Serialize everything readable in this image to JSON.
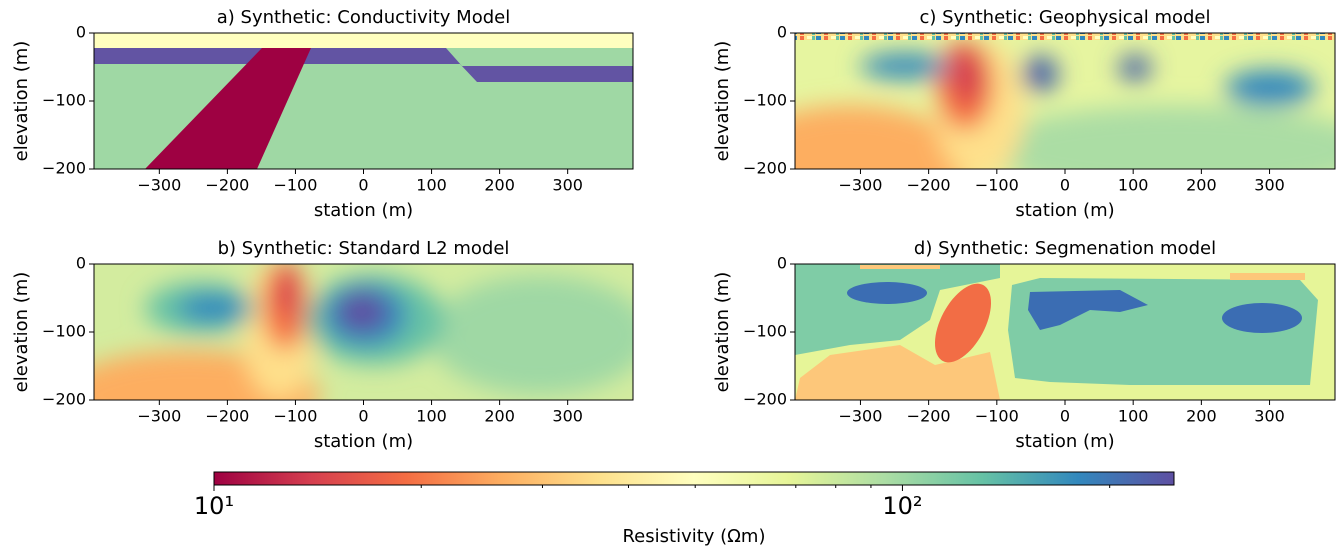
{
  "chart_data": [
    {
      "type": "heatmap",
      "title": "a) Synthetic: Conductivity Model",
      "xlabel": "station (m)",
      "ylabel": "elevation (m)",
      "xlim": [
        -396,
        396
      ],
      "ylim": [
        -200,
        0
      ],
      "xticks": [
        {
          "value": -300,
          "label": "−300"
        },
        {
          "value": -200,
          "label": "−200"
        },
        {
          "value": -100,
          "label": "−100"
        },
        0,
        100,
        200,
        300
      ],
      "yticks": [
        {
          "value": -200,
          "label": "−200"
        },
        {
          "value": -100,
          "label": "−100"
        },
        0
      ]
    },
    {
      "type": "heatmap",
      "title": "c) Synthetic: Geophysical model",
      "xlabel": "station (m)",
      "ylabel": "elevation (m)",
      "xlim": [
        -396,
        396
      ],
      "ylim": [
        -200,
        0
      ],
      "xticks": [
        {
          "value": -300,
          "label": "−300"
        },
        {
          "value": -200,
          "label": "−200"
        },
        {
          "value": -100,
          "label": "−100"
        },
        0,
        100,
        200,
        300
      ],
      "yticks": [
        {
          "value": -200,
          "label": "−200"
        },
        {
          "value": -100,
          "label": "−100"
        },
        0
      ]
    },
    {
      "type": "heatmap",
      "title": "b) Synthetic: Standard L2 model",
      "xlabel": "station (m)",
      "ylabel": "elevation (m)",
      "xlim": [
        -396,
        396
      ],
      "ylim": [
        -200,
        0
      ],
      "xticks": [
        {
          "value": -300,
          "label": "−300"
        },
        {
          "value": -200,
          "label": "−200"
        },
        {
          "value": -100,
          "label": "−100"
        },
        0,
        100,
        200,
        300
      ],
      "yticks": [
        {
          "value": -200,
          "label": "−200"
        },
        {
          "value": -100,
          "label": "−100"
        },
        0
      ]
    },
    {
      "type": "heatmap",
      "title": "d) Synthetic: Segmenation model",
      "xlabel": "station (m)",
      "ylabel": "elevation (m)",
      "xlim": [
        -396,
        396
      ],
      "ylim": [
        -200,
        0
      ],
      "xticks": [
        {
          "value": -300,
          "label": "−300"
        },
        {
          "value": -200,
          "label": "−200"
        },
        {
          "value": -100,
          "label": "−100"
        },
        0,
        100,
        200,
        300
      ],
      "yticks": [
        {
          "value": -200,
          "label": "−200"
        },
        {
          "value": -100,
          "label": "−100"
        },
        0
      ]
    },
    {
      "type": "colorbar",
      "label": "Resistivity (Ωm)",
      "scale": "log",
      "clim": [
        10,
        248
      ],
      "ticks": [
        {
          "value": 10,
          "label": "10¹"
        },
        {
          "value": 100,
          "label": "10²"
        }
      ],
      "minor_ticks": [
        20,
        30,
        40,
        50,
        60,
        70,
        80,
        90,
        200
      ],
      "colors": [
        "#9e0142",
        "#d53e4f",
        "#f46d43",
        "#fdae61",
        "#fee08b",
        "#ffffbf",
        "#e6f598",
        "#abdda4",
        "#66c2a5",
        "#3288bd",
        "#5e4fa2"
      ]
    }
  ]
}
